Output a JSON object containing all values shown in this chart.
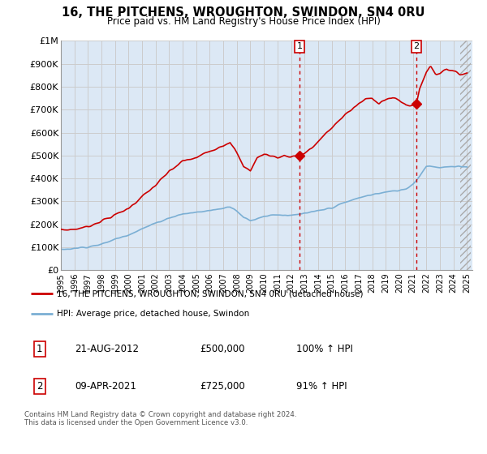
{
  "title": "16, THE PITCHENS, WROUGHTON, SWINDON, SN4 0RU",
  "subtitle": "Price paid vs. HM Land Registry's House Price Index (HPI)",
  "ylabel_ticks": [
    "£0",
    "£100K",
    "£200K",
    "£300K",
    "£400K",
    "£500K",
    "£600K",
    "£700K",
    "£800K",
    "£900K",
    "£1M"
  ],
  "ytick_values": [
    0,
    100000,
    200000,
    300000,
    400000,
    500000,
    600000,
    700000,
    800000,
    900000,
    1000000
  ],
  "ylim": [
    0,
    1000000
  ],
  "x_start_year": 1995,
  "x_end_year": 2025,
  "red_color": "#cc0000",
  "blue_color": "#7bafd4",
  "shaded_color": "#dbe8f5",
  "hatch_color": "#bbbbbb",
  "grid_color": "#cccccc",
  "marker1_year": 2012.62,
  "marker1_value": 500000,
  "marker2_year": 2021.27,
  "marker2_value": 725000,
  "legend_label_red": "16, THE PITCHENS, WROUGHTON, SWINDON, SN4 0RU (detached house)",
  "legend_label_blue": "HPI: Average price, detached house, Swindon",
  "footnote": "Contains HM Land Registry data © Crown copyright and database right 2024.\nThis data is licensed under the Open Government Licence v3.0.",
  "background_color": "#ffffff",
  "plot_bg_color": "#dce8f5"
}
